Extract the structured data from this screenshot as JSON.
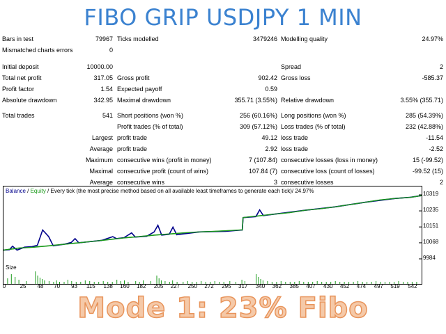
{
  "title": "FIBO GRIP USDJPY 1 MIN",
  "report": {
    "bars_in_test": {
      "label": "Bars in test",
      "value": "79967"
    },
    "ticks_modelled": {
      "label": "Ticks modelled",
      "value": "3479246"
    },
    "modelling_quality": {
      "label": "Modelling quality",
      "value": "24.97%"
    },
    "mismatched": {
      "label": "Mismatched charts errors",
      "value": "0"
    },
    "initial_deposit": {
      "label": "Initial deposit",
      "value": "10000.00"
    },
    "spread": {
      "label": "Spread",
      "value": "2"
    },
    "total_net_profit": {
      "label": "Total net profit",
      "value": "317.05"
    },
    "gross_profit": {
      "label": "Gross profit",
      "value": "902.42"
    },
    "gross_loss": {
      "label": "Gross loss",
      "value": "-585.37"
    },
    "profit_factor": {
      "label": "Profit factor",
      "value": "1.54"
    },
    "expected_payoff": {
      "label": "Expected payoff",
      "value": "0.59"
    },
    "absolute_drawdown": {
      "label": "Absolute drawdown",
      "value": "342.95"
    },
    "maximal_drawdown": {
      "label": "Maximal drawdown",
      "value": "355.71 (3.55%)"
    },
    "relative_drawdown": {
      "label": "Relative drawdown",
      "value": "3.55% (355.71)"
    },
    "total_trades": {
      "label": "Total trades",
      "value": "541"
    },
    "short_positions": {
      "label": "Short positions (won %)",
      "value": "256 (60.16%)"
    },
    "long_positions": {
      "label": "Long positions (won %)",
      "value": "285 (54.39%)"
    },
    "profit_trades": {
      "label": "Profit trades (% of total)",
      "value": "309 (57.12%)"
    },
    "loss_trades": {
      "label": "Loss trades (% of total)",
      "value": "232 (42.88%)"
    },
    "largest": {
      "label": "Largest",
      "profit_label": "profit trade",
      "profit_value": "49.12",
      "loss_label": "loss trade",
      "loss_value": "-11.54"
    },
    "average": {
      "label": "Average",
      "profit_label": "profit trade",
      "profit_value": "2.92",
      "loss_label": "loss trade",
      "loss_value": "-2.52"
    },
    "maximum": {
      "label": "Maximum",
      "wins_label": "consecutive wins (profit in money)",
      "wins_value": "7 (107.84)",
      "loss_label": "consecutive losses (loss in money)",
      "loss_value": "15 (-99.52)"
    },
    "maximal": {
      "label": "Maximal",
      "wins_label": "consecutive profit (count of wins)",
      "wins_value": "107.84 (7)",
      "loss_label": "consecutive loss (count of losses)",
      "loss_value": "-99.52 (15)"
    },
    "average2": {
      "label": "Average",
      "wins_label": "consecutive wins",
      "wins_value": "3",
      "loss_label": "consecutive losses",
      "loss_value": "2"
    }
  },
  "chart_data": {
    "type": "line",
    "legend": {
      "balance": "Balance",
      "equity": "Equity",
      "note": "Every tick (the most precise method based on all available least timeframes to generate each tick)",
      "quality": "24.97%"
    },
    "size_label": "Size",
    "y_ticks": [
      "10319",
      "10235",
      "10151",
      "10068",
      "9984"
    ],
    "y_tick_values": [
      10319,
      10235,
      10151,
      10068,
      9984
    ],
    "ylim": [
      9984,
      10319
    ],
    "x_ticks": [
      "0",
      "25",
      "48",
      "70",
      "93",
      "115",
      "138",
      "160",
      "182",
      "205",
      "227",
      "250",
      "272",
      "295",
      "317",
      "340",
      "362",
      "385",
      "407",
      "430",
      "452",
      "474",
      "497",
      "519",
      "542"
    ],
    "xlim": [
      0,
      555
    ],
    "balance": [
      [
        0,
        10030
      ],
      [
        20,
        10040
      ],
      [
        40,
        10045
      ],
      [
        60,
        10052
      ],
      [
        80,
        10060
      ],
      [
        100,
        10068
      ],
      [
        120,
        10076
      ],
      [
        140,
        10085
      ],
      [
        160,
        10094
      ],
      [
        180,
        10100
      ],
      [
        200,
        10108
      ],
      [
        220,
        10114
      ],
      [
        240,
        10120
      ],
      [
        260,
        10125
      ],
      [
        280,
        10128
      ],
      [
        300,
        10132
      ],
      [
        315,
        10135
      ],
      [
        317,
        10135
      ],
      [
        318,
        10200
      ],
      [
        330,
        10205
      ],
      [
        360,
        10218
      ],
      [
        380,
        10226
      ],
      [
        400,
        10238
      ],
      [
        420,
        10246
      ],
      [
        440,
        10256
      ],
      [
        460,
        10268
      ],
      [
        480,
        10280
      ],
      [
        500,
        10292
      ],
      [
        520,
        10300
      ],
      [
        540,
        10306
      ],
      [
        555,
        10315
      ]
    ],
    "equity": [
      [
        0,
        10030
      ],
      [
        8,
        10032
      ],
      [
        12,
        10050
      ],
      [
        18,
        10030
      ],
      [
        28,
        10045
      ],
      [
        38,
        10048
      ],
      [
        45,
        10055
      ],
      [
        52,
        10135
      ],
      [
        60,
        10100
      ],
      [
        66,
        10052
      ],
      [
        80,
        10060
      ],
      [
        90,
        10070
      ],
      [
        95,
        10090
      ],
      [
        100,
        10068
      ],
      [
        130,
        10080
      ],
      [
        145,
        10100
      ],
      [
        150,
        10090
      ],
      [
        160,
        10095
      ],
      [
        170,
        10120
      ],
      [
        175,
        10098
      ],
      [
        190,
        10102
      ],
      [
        200,
        10125
      ],
      [
        205,
        10160
      ],
      [
        210,
        10108
      ],
      [
        220,
        10112
      ],
      [
        225,
        10150
      ],
      [
        230,
        10110
      ],
      [
        260,
        10125
      ],
      [
        295,
        10128
      ],
      [
        317,
        10135
      ],
      [
        318,
        10200
      ],
      [
        335,
        10205
      ],
      [
        340,
        10240
      ],
      [
        345,
        10210
      ],
      [
        360,
        10218
      ],
      [
        400,
        10238
      ],
      [
        440,
        10256
      ],
      [
        480,
        10280
      ],
      [
        520,
        10300
      ],
      [
        540,
        10306
      ],
      [
        555,
        10315
      ]
    ],
    "size_bars": [
      [
        5,
        8
      ],
      [
        10,
        14
      ],
      [
        15,
        10
      ],
      [
        20,
        6
      ],
      [
        30,
        4
      ],
      [
        42,
        18
      ],
      [
        45,
        12
      ],
      [
        48,
        9
      ],
      [
        51,
        7
      ],
      [
        54,
        5
      ],
      [
        60,
        4
      ],
      [
        66,
        3
      ],
      [
        70,
        5
      ],
      [
        74,
        3
      ],
      [
        80,
        3
      ],
      [
        85,
        6
      ],
      [
        90,
        4
      ],
      [
        96,
        3
      ],
      [
        102,
        3
      ],
      [
        108,
        5
      ],
      [
        114,
        4
      ],
      [
        120,
        3
      ],
      [
        126,
        3
      ],
      [
        132,
        4
      ],
      [
        138,
        3
      ],
      [
        144,
        3
      ],
      [
        150,
        6
      ],
      [
        155,
        4
      ],
      [
        160,
        5
      ],
      [
        165,
        3
      ],
      [
        175,
        4
      ],
      [
        180,
        3
      ],
      [
        185,
        5
      ],
      [
        195,
        4
      ],
      [
        203,
        12
      ],
      [
        206,
        8
      ],
      [
        209,
        5
      ],
      [
        214,
        4
      ],
      [
        220,
        3
      ],
      [
        224,
        5
      ],
      [
        230,
        3
      ],
      [
        238,
        3
      ],
      [
        244,
        4
      ],
      [
        250,
        3
      ],
      [
        256,
        3
      ],
      [
        262,
        4
      ],
      [
        268,
        3
      ],
      [
        274,
        3
      ],
      [
        280,
        4
      ],
      [
        286,
        3
      ],
      [
        292,
        3
      ],
      [
        300,
        4
      ],
      [
        308,
        3
      ],
      [
        316,
        6
      ],
      [
        320,
        4
      ],
      [
        335,
        14
      ],
      [
        338,
        10
      ],
      [
        341,
        7
      ],
      [
        344,
        5
      ],
      [
        350,
        4
      ],
      [
        356,
        3
      ],
      [
        362,
        3
      ],
      [
        368,
        4
      ],
      [
        374,
        3
      ],
      [
        380,
        3
      ],
      [
        386,
        3
      ],
      [
        392,
        4
      ],
      [
        398,
        3
      ],
      [
        404,
        3
      ],
      [
        410,
        3
      ],
      [
        416,
        4
      ],
      [
        422,
        3
      ],
      [
        428,
        3
      ],
      [
        434,
        3
      ],
      [
        440,
        4
      ],
      [
        446,
        3
      ],
      [
        452,
        3
      ],
      [
        458,
        3
      ],
      [
        464,
        3
      ],
      [
        470,
        4
      ],
      [
        476,
        3
      ],
      [
        482,
        3
      ],
      [
        488,
        3
      ],
      [
        494,
        4
      ],
      [
        500,
        3
      ],
      [
        506,
        3
      ],
      [
        512,
        3
      ],
      [
        518,
        3
      ],
      [
        524,
        4
      ],
      [
        530,
        3
      ],
      [
        536,
        3
      ],
      [
        542,
        3
      ],
      [
        548,
        3
      ]
    ],
    "colors": {
      "balance": "#00008b",
      "equity": "#1a9a1a",
      "bars": "#1a9a1a"
    }
  },
  "footer": "Mode 1: 23% Fibo"
}
